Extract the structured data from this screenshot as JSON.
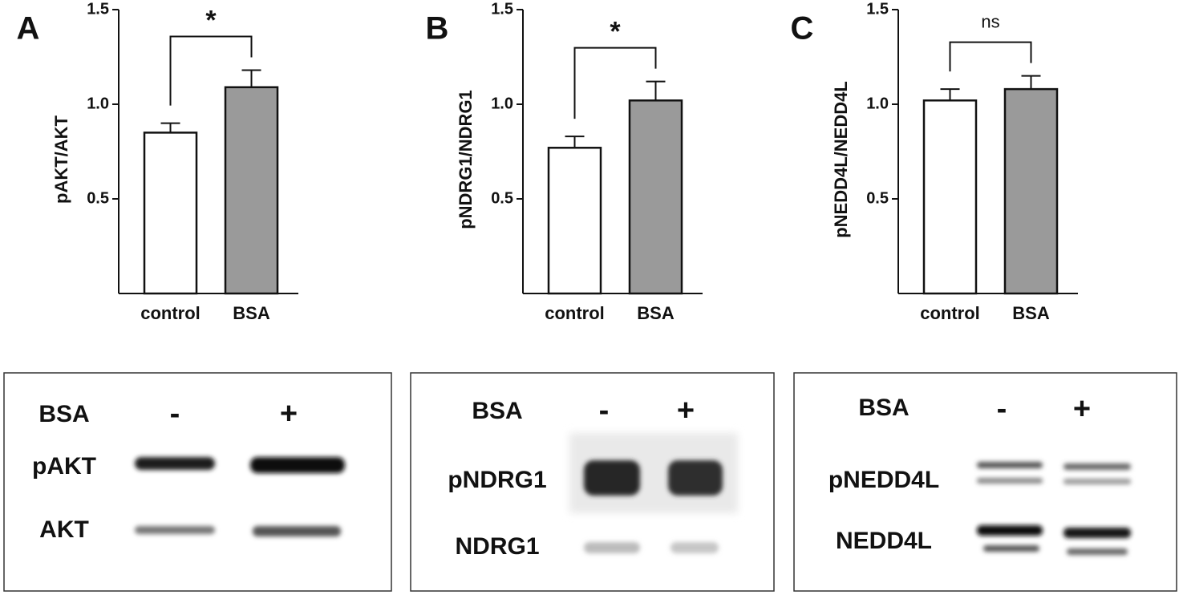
{
  "chart_data": [
    {
      "type": "bar",
      "panel": "A",
      "ylabel": "pAKT/AKT",
      "categories": [
        "control",
        "BSA"
      ],
      "values": [
        0.85,
        1.09
      ],
      "errors": [
        0.05,
        0.09
      ],
      "colors": [
        "#ffffff",
        "#9a9a9a"
      ],
      "ylim": [
        0,
        1.5
      ],
      "yticks": [
        0.5,
        {
          "value": 1,
          "label": "1.0"
        },
        1.5
      ],
      "annotation": "*",
      "annotation_color": "#c00000"
    },
    {
      "type": "bar",
      "panel": "B",
      "ylabel": "pNDRG1/NDRG1",
      "categories": [
        "control",
        "BSA"
      ],
      "values": [
        0.77,
        1.02
      ],
      "errors": [
        0.06,
        0.1
      ],
      "colors": [
        "#ffffff",
        "#9a9a9a"
      ],
      "ylim": [
        0,
        1.5
      ],
      "yticks": [
        0.5,
        {
          "value": 1,
          "label": "1.0"
        },
        1.5
      ],
      "annotation": "*",
      "annotation_color": "#c00000"
    },
    {
      "type": "bar",
      "panel": "C",
      "ylabel": "pNEDD4L/NEDD4L",
      "categories": [
        "control",
        "BSA"
      ],
      "values": [
        1.02,
        1.08
      ],
      "errors": [
        0.06,
        0.07
      ],
      "colors": [
        "#ffffff",
        "#9a9a9a"
      ],
      "ylim": [
        0,
        1.5
      ],
      "yticks": [
        0.5,
        {
          "value": 1,
          "label": "1.0"
        },
        1.5
      ],
      "annotation": "ns",
      "annotation_color": "#222222"
    }
  ],
  "blots": [
    {
      "treatment": "BSA",
      "lanes": [
        "-",
        "+"
      ],
      "rows": [
        "pAKT",
        "AKT"
      ]
    },
    {
      "treatment": "BSA",
      "lanes": [
        "-",
        "+"
      ],
      "rows": [
        "pNDRG1",
        "NDRG1"
      ]
    },
    {
      "treatment": "BSA",
      "lanes": [
        "-",
        "+"
      ],
      "rows": [
        "pNEDD4L",
        "NEDD4L"
      ]
    }
  ]
}
